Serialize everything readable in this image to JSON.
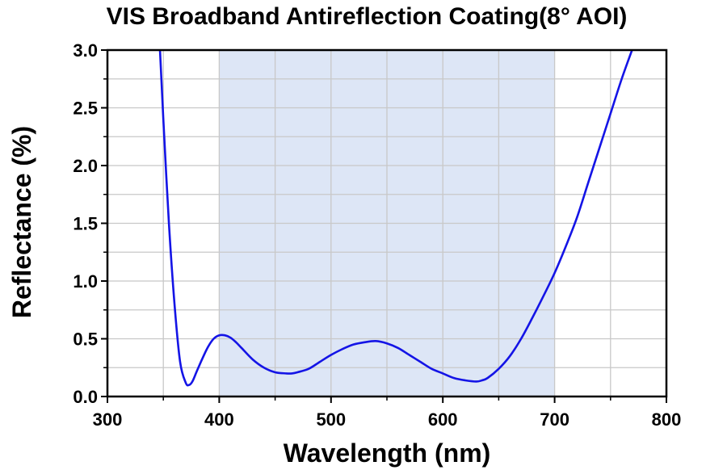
{
  "chart_data": {
    "type": "line",
    "title": "VIS Broadband Antireflection Coating(8° AOI)",
    "xlabel": "Wavelength (nm)",
    "ylabel": "Reflectance (%)",
    "xlim": [
      300,
      800
    ],
    "ylim": [
      0,
      3.0
    ],
    "xticks": [
      300,
      400,
      500,
      600,
      700,
      800
    ],
    "xtick_labels": [
      "300",
      "400",
      "500",
      "600",
      "700",
      "800"
    ],
    "yticks": [
      0,
      0.5,
      1.0,
      1.5,
      2.0,
      2.5,
      3.0
    ],
    "ytick_labels": [
      "0.0",
      "0.5",
      "1.0",
      "1.5",
      "2.0",
      "2.5",
      "3.0"
    ],
    "grid": true,
    "highlight_band": {
      "x_start": 400,
      "x_end": 700,
      "color": "#dde6f6"
    },
    "series": [
      {
        "color": "#1414e6",
        "x": [
          347,
          350,
          355,
          360,
          365,
          370,
          373,
          376,
          380,
          385,
          390,
          395,
          400,
          405,
          410,
          415,
          420,
          430,
          440,
          450,
          460,
          465,
          470,
          480,
          490,
          500,
          510,
          520,
          530,
          540,
          550,
          560,
          570,
          580,
          590,
          600,
          610,
          620,
          630,
          635,
          640,
          650,
          660,
          670,
          680,
          690,
          700,
          710,
          720,
          730,
          740,
          750,
          760,
          770
        ],
        "y": [
          3.0,
          2.4,
          1.5,
          0.8,
          0.3,
          0.12,
          0.1,
          0.13,
          0.22,
          0.33,
          0.43,
          0.5,
          0.53,
          0.53,
          0.51,
          0.47,
          0.42,
          0.32,
          0.25,
          0.21,
          0.2,
          0.2,
          0.21,
          0.24,
          0.3,
          0.36,
          0.41,
          0.45,
          0.47,
          0.48,
          0.46,
          0.42,
          0.36,
          0.3,
          0.24,
          0.2,
          0.16,
          0.14,
          0.13,
          0.14,
          0.16,
          0.24,
          0.35,
          0.5,
          0.68,
          0.87,
          1.07,
          1.3,
          1.55,
          1.85,
          2.15,
          2.45,
          2.75,
          3.02
        ]
      }
    ]
  }
}
